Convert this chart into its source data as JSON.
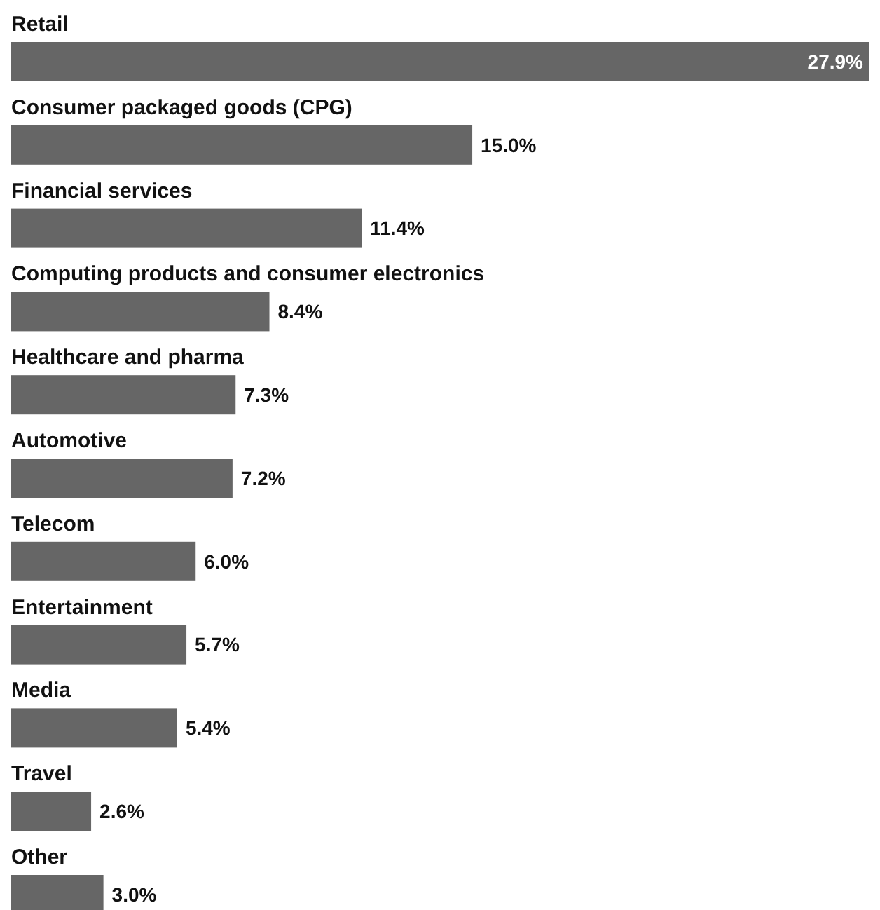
{
  "chart_data": {
    "type": "bar",
    "orientation": "horizontal",
    "categories": [
      "Retail",
      "Consumer packaged goods (CPG)",
      "Financial services",
      "Computing products and consumer electronics",
      "Healthcare and pharma",
      "Automotive",
      "Telecom",
      "Entertainment",
      "Media",
      "Travel",
      "Other"
    ],
    "values": [
      27.9,
      15.0,
      11.4,
      8.4,
      7.3,
      7.2,
      6.0,
      5.7,
      5.4,
      2.6,
      3.0
    ],
    "value_labels": [
      "27.9%",
      "15.0%",
      "11.4%",
      "8.4%",
      "7.3%",
      "7.2%",
      "6.0%",
      "5.7%",
      "5.4%",
      "2.6%",
      "3.0%"
    ],
    "color": "#666666"
  }
}
